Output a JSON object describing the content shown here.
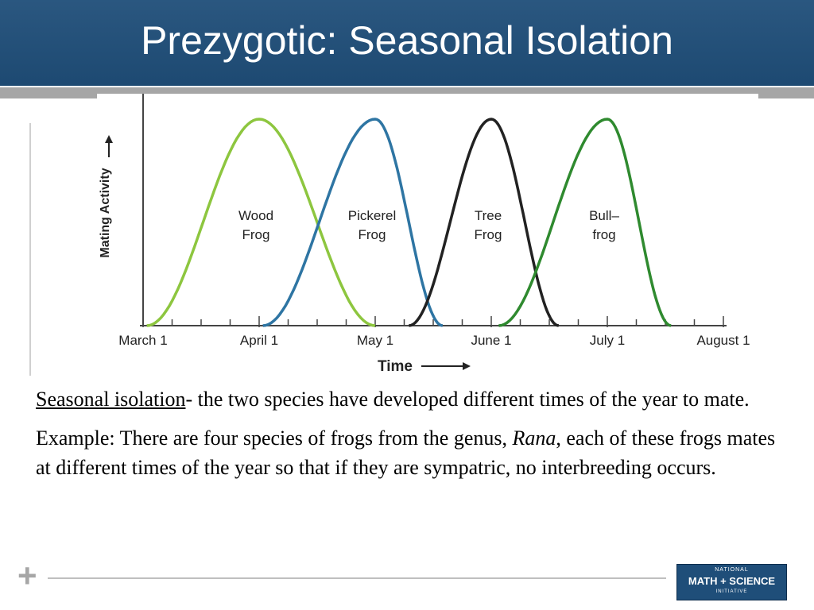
{
  "slide": {
    "title": "Prezygotic: Seasonal Isolation",
    "definition_term": "Seasonal isolation",
    "definition_rest": "- the two species have developed different times of the year to mate.",
    "example_prefix": "Example: There are four species of frogs from the genus, ",
    "example_genus": "Rana",
    "example_suffix": ", each of these frogs mates at different times of the year so that if they are sympatric, no interbreeding occurs.",
    "logo": {
      "line1": "NATIONAL",
      "line2": "MATH + SCIENCE",
      "line3": "INITIATIVE"
    },
    "colors": {
      "title_bar": "#1f4e79",
      "wood_frog": "#8dc63f",
      "pickerel_frog": "#2e75a3",
      "tree_frog": "#222222",
      "bullfrog": "#2f8a2f"
    }
  },
  "chart_data": {
    "type": "line",
    "xlabel": "Time",
    "ylabel": "Mating Activity",
    "x_ticks": [
      "March 1",
      "April 1",
      "May 1",
      "June 1",
      "July 1",
      "August 1"
    ],
    "xlim": [
      "March 1",
      "August 1"
    ],
    "ylim": [
      0,
      1
    ],
    "series": [
      {
        "name": "Wood Frog",
        "label_lines": [
          "Wood",
          "Frog"
        ],
        "color": "#8dc63f",
        "start": "March 2",
        "peak": "April 1",
        "end": "May 1",
        "peak_value": 1
      },
      {
        "name": "Pickerel Frog",
        "label_lines": [
          "Pickerel",
          "Frog"
        ],
        "color": "#2e75a3",
        "start": "April 2",
        "peak": "May 1",
        "end": "May 19",
        "peak_value": 1
      },
      {
        "name": "Tree Frog",
        "label_lines": [
          "Tree",
          "Frog"
        ],
        "color": "#222222",
        "start": "May 10",
        "peak": "June 1",
        "end": "June 19",
        "peak_value": 1
      },
      {
        "name": "Bullfrog",
        "label_lines": [
          "Bull–",
          "frog"
        ],
        "color": "#2f8a2f",
        "start": "June 3",
        "peak": "July 1",
        "end": "July 18",
        "peak_value": 1
      }
    ]
  }
}
